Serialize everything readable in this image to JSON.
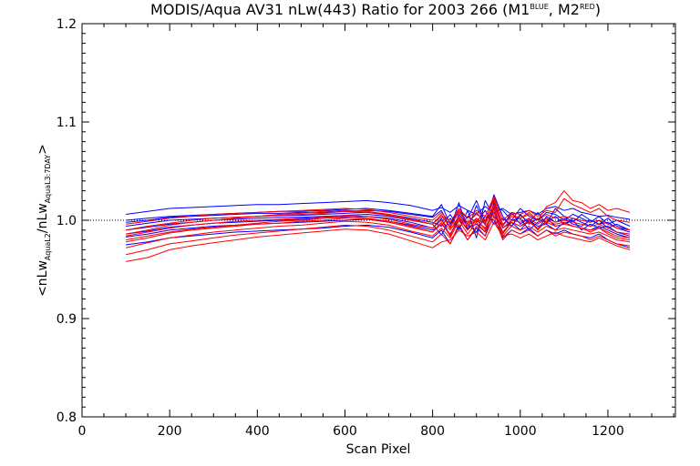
{
  "chart_data": {
    "type": "line",
    "title": {
      "main": "MODIS/Aqua AV31 nLw(443) Ratio for 2003 266 (M1",
      "sup1": "BLUE",
      "mid": ", M2",
      "sup2": "RED",
      "end": ")"
    },
    "xlabel": "Scan Pixel",
    "ylabel": {
      "open": "<nLw",
      "sub1": "AquaL2",
      "slash": "/nLw",
      "sub2": "AquaL3:7DAY",
      "close": ">"
    },
    "xlim": [
      0,
      1354
    ],
    "ylim": [
      0.8,
      1.2
    ],
    "xticks": [
      0,
      200,
      400,
      600,
      800,
      1000,
      1200
    ],
    "yticks": [
      0.8,
      0.9,
      1.0,
      1.1,
      1.2
    ],
    "xtick_labels": [
      "0",
      "200",
      "400",
      "600",
      "800",
      "1000",
      "1200"
    ],
    "ytick_labels": [
      "0.8",
      "0.9",
      "1.0",
      "1.1",
      "1.2"
    ],
    "reference_line": {
      "y": 1.0,
      "style": "dotted"
    },
    "grid": false,
    "x": [
      100,
      150,
      200,
      250,
      300,
      350,
      400,
      450,
      500,
      550,
      600,
      650,
      700,
      750,
      800,
      820,
      840,
      860,
      880,
      900,
      920,
      940,
      960,
      980,
      1000,
      1020,
      1040,
      1060,
      1080,
      1100,
      1120,
      1140,
      1160,
      1180,
      1200,
      1220,
      1250
    ],
    "series": [
      {
        "color": "#0000ff",
        "values": [
          1.006,
          1.009,
          1.012,
          1.013,
          1.014,
          1.015,
          1.016,
          1.016,
          1.017,
          1.018,
          1.019,
          1.02,
          1.018,
          1.015,
          1.01,
          1.013,
          1.008,
          1.015,
          1.01,
          1.006,
          1.014,
          1.008,
          1.012,
          1.006,
          1.008,
          1.01,
          1.006,
          1.012,
          1.014,
          1.01,
          1.012,
          1.008,
          1.006,
          1.004,
          1.005,
          1.003,
          1.001
        ]
      },
      {
        "color": "#0000ff",
        "values": [
          0.998,
          1.0,
          1.003,
          1.004,
          1.005,
          1.006,
          1.007,
          1.007,
          1.008,
          1.008,
          1.009,
          1.01,
          1.009,
          1.006,
          1.003,
          1.01,
          0.992,
          1.018,
          0.99,
          1.015,
          0.995,
          1.026,
          1.004,
          0.994,
          1.005,
          0.998,
          1.008,
          0.996,
          1.012,
          1.004,
          0.998,
          1.006,
          1.0,
          0.996,
          1.002,
          0.994,
          0.99
        ]
      },
      {
        "color": "#0000ff",
        "values": [
          0.99,
          0.993,
          0.996,
          0.998,
          1.0,
          1.001,
          1.002,
          1.003,
          1.003,
          1.004,
          1.005,
          1.006,
          1.004,
          1.0,
          0.996,
          0.985,
          1.002,
          0.99,
          1.01,
          0.982,
          1.02,
          1.004,
          0.994,
          1.008,
          0.996,
          1.002,
          0.99,
          1.004,
          0.998,
          1.002,
          0.996,
          0.994,
          1.0,
          0.996,
          0.998,
          0.992,
          0.988
        ]
      },
      {
        "color": "#0000ff",
        "values": [
          0.983,
          0.986,
          0.99,
          0.992,
          0.994,
          0.995,
          0.996,
          0.997,
          0.998,
          0.999,
          1.0,
          1.001,
          0.999,
          0.995,
          0.99,
          0.996,
          0.986,
          1.0,
          0.992,
          0.996,
          0.988,
          1.018,
          0.992,
          0.998,
          0.99,
          1.0,
          0.994,
          0.996,
          0.99,
          0.998,
          0.994,
          0.992,
          0.99,
          0.994,
          0.99,
          0.986,
          0.982
        ]
      },
      {
        "color": "#0000ff",
        "values": [
          0.975,
          0.978,
          0.982,
          0.984,
          0.986,
          0.988,
          0.989,
          0.99,
          0.991,
          0.992,
          0.994,
          0.995,
          0.993,
          0.988,
          0.982,
          0.99,
          0.976,
          0.994,
          0.98,
          0.992,
          0.984,
          1.012,
          0.982,
          0.99,
          0.986,
          0.992,
          0.984,
          0.99,
          0.986,
          0.99,
          0.986,
          0.984,
          0.982,
          0.986,
          0.98,
          0.976,
          0.972
        ]
      },
      {
        "color": "#0000ff",
        "values": [
          1.0,
          1.002,
          1.004,
          1.005,
          1.006,
          1.007,
          1.008,
          1.009,
          1.009,
          1.01,
          1.011,
          1.012,
          1.01,
          1.007,
          1.004,
          1.016,
          0.996,
          1.01,
          1.002,
          1.02,
          0.998,
          1.014,
          1.01,
          1.0,
          1.012,
          1.004,
          1.0,
          1.008,
          1.006,
          1.0,
          1.006,
          1.002,
          0.998,
          1.004,
          0.996,
          1.0,
          0.994
        ]
      },
      {
        "color": "#0000ff",
        "values": [
          0.986,
          0.989,
          0.993,
          0.995,
          0.997,
          0.998,
          0.999,
          1.0,
          1.001,
          1.002,
          1.003,
          1.004,
          1.002,
          0.998,
          0.992,
          1.002,
          0.984,
          1.006,
          0.996,
          0.988,
          1.004,
          1.0,
          0.986,
          1.0,
          1.002,
          0.99,
          0.998,
          1.002,
          0.994,
          0.996,
          1.0,
          0.99,
          0.996,
          0.992,
          0.994,
          0.988,
          0.984
        ]
      },
      {
        "color": "#0000ff",
        "values": [
          0.994,
          0.997,
          1.0,
          1.001,
          1.002,
          1.003,
          1.004,
          1.005,
          1.005,
          1.006,
          1.007,
          1.008,
          1.006,
          1.002,
          0.998,
          0.994,
          1.006,
          0.992,
          1.004,
          0.998,
          1.01,
          0.996,
          1.002,
          0.994,
          1.006,
          0.996,
          1.002,
          0.998,
          1.004,
          0.996,
          1.002,
          0.998,
          0.994,
          1.0,
          0.992,
          0.996,
          0.99
        ]
      },
      {
        "color": "#ff0000",
        "values": [
          0.958,
          0.962,
          0.97,
          0.974,
          0.977,
          0.98,
          0.983,
          0.985,
          0.987,
          0.989,
          0.991,
          0.99,
          0.986,
          0.979,
          0.972,
          0.978,
          0.98,
          0.99,
          0.984,
          0.988,
          0.98,
          0.998,
          0.984,
          0.986,
          0.982,
          0.986,
          0.98,
          0.984,
          0.988,
          0.984,
          0.982,
          0.98,
          0.978,
          0.982,
          0.978,
          0.974,
          0.97
        ]
      },
      {
        "color": "#ff0000",
        "values": [
          0.965,
          0.97,
          0.976,
          0.979,
          0.982,
          0.985,
          0.987,
          0.989,
          0.991,
          0.993,
          0.995,
          0.994,
          0.99,
          0.984,
          0.978,
          0.986,
          0.976,
          0.996,
          0.98,
          0.994,
          0.984,
          1.004,
          0.98,
          0.99,
          0.986,
          0.99,
          0.984,
          0.99,
          0.984,
          0.988,
          0.986,
          0.984,
          0.98,
          0.984,
          0.98,
          0.976,
          0.974
        ]
      },
      {
        "color": "#ff0000",
        "values": [
          0.972,
          0.977,
          0.982,
          0.985,
          0.988,
          0.99,
          0.992,
          0.994,
          0.995,
          0.997,
          0.999,
          0.998,
          0.995,
          0.989,
          0.984,
          0.992,
          0.982,
          1.0,
          0.986,
          0.998,
          0.988,
          1.008,
          0.984,
          0.994,
          0.99,
          0.994,
          0.988,
          0.994,
          0.99,
          0.992,
          0.99,
          0.988,
          0.986,
          0.988,
          0.984,
          0.98,
          0.978
        ]
      },
      {
        "color": "#ff0000",
        "values": [
          0.978,
          0.982,
          0.987,
          0.99,
          0.992,
          0.994,
          0.996,
          0.997,
          0.999,
          1.0,
          1.002,
          1.001,
          0.998,
          0.993,
          0.988,
          0.996,
          0.986,
          1.002,
          0.99,
          1.0,
          0.992,
          1.012,
          0.988,
          0.998,
          0.994,
          0.998,
          0.992,
          0.998,
          0.994,
          0.996,
          0.994,
          0.992,
          0.99,
          0.992,
          0.988,
          0.984,
          0.982
        ]
      },
      {
        "color": "#ff0000",
        "values": [
          0.984,
          0.988,
          0.992,
          0.995,
          0.997,
          0.999,
          1.0,
          1.001,
          1.002,
          1.003,
          1.005,
          1.004,
          1.001,
          0.996,
          0.992,
          1.0,
          0.99,
          1.004,
          0.994,
          1.002,
          0.996,
          1.016,
          0.992,
          1.0,
          0.998,
          1.002,
          0.996,
          1.002,
          0.998,
          1.0,
          0.998,
          0.996,
          0.994,
          0.996,
          0.992,
          0.988,
          0.986
        ]
      },
      {
        "color": "#ff0000",
        "values": [
          0.99,
          0.994,
          0.997,
          1.0,
          1.002,
          1.003,
          1.004,
          1.005,
          1.006,
          1.007,
          1.009,
          1.008,
          1.005,
          1.0,
          0.996,
          1.004,
          0.994,
          1.008,
          0.998,
          1.006,
          1.0,
          1.02,
          0.996,
          1.004,
          1.002,
          1.006,
          1.0,
          1.006,
          1.002,
          1.004,
          1.002,
          1.0,
          0.998,
          1.0,
          0.996,
          0.992,
          0.99
        ]
      },
      {
        "color": "#ff0000",
        "values": [
          0.996,
          0.999,
          1.002,
          1.004,
          1.006,
          1.007,
          1.008,
          1.009,
          1.01,
          1.011,
          1.012,
          1.011,
          1.008,
          1.004,
          1.0,
          1.008,
          0.998,
          1.012,
          1.002,
          1.01,
          1.004,
          1.024,
          1.0,
          1.008,
          1.006,
          1.01,
          1.004,
          1.01,
          1.008,
          1.022,
          1.016,
          1.012,
          1.008,
          1.012,
          1.004,
          1.0,
          0.998
        ]
      },
      {
        "color": "#ff0000",
        "values": [
          0.98,
          0.984,
          0.988,
          0.991,
          0.993,
          0.995,
          0.997,
          0.999,
          1.0,
          1.002,
          1.004,
          1.002,
          0.999,
          0.994,
          0.988,
          0.998,
          0.984,
          1.004,
          0.99,
          1.002,
          0.99,
          1.014,
          0.986,
          0.998,
          0.994,
          1.0,
          0.99,
          1.0,
          0.996,
          0.998,
          0.994,
          0.992,
          0.988,
          0.992,
          0.986,
          0.982,
          0.98
        ]
      },
      {
        "color": "#ff0000",
        "values": [
          0.986,
          0.99,
          0.995,
          0.998,
          1.0,
          1.002,
          1.004,
          1.006,
          1.007,
          1.009,
          1.01,
          1.009,
          1.006,
          1.001,
          0.996,
          1.006,
          0.992,
          1.01,
          0.996,
          1.008,
          0.998,
          1.022,
          0.994,
          1.006,
          1.002,
          1.008,
          1.0,
          1.014,
          1.018,
          1.03,
          1.02,
          1.018,
          1.012,
          1.016,
          1.01,
          1.012,
          1.008
        ]
      }
    ]
  }
}
